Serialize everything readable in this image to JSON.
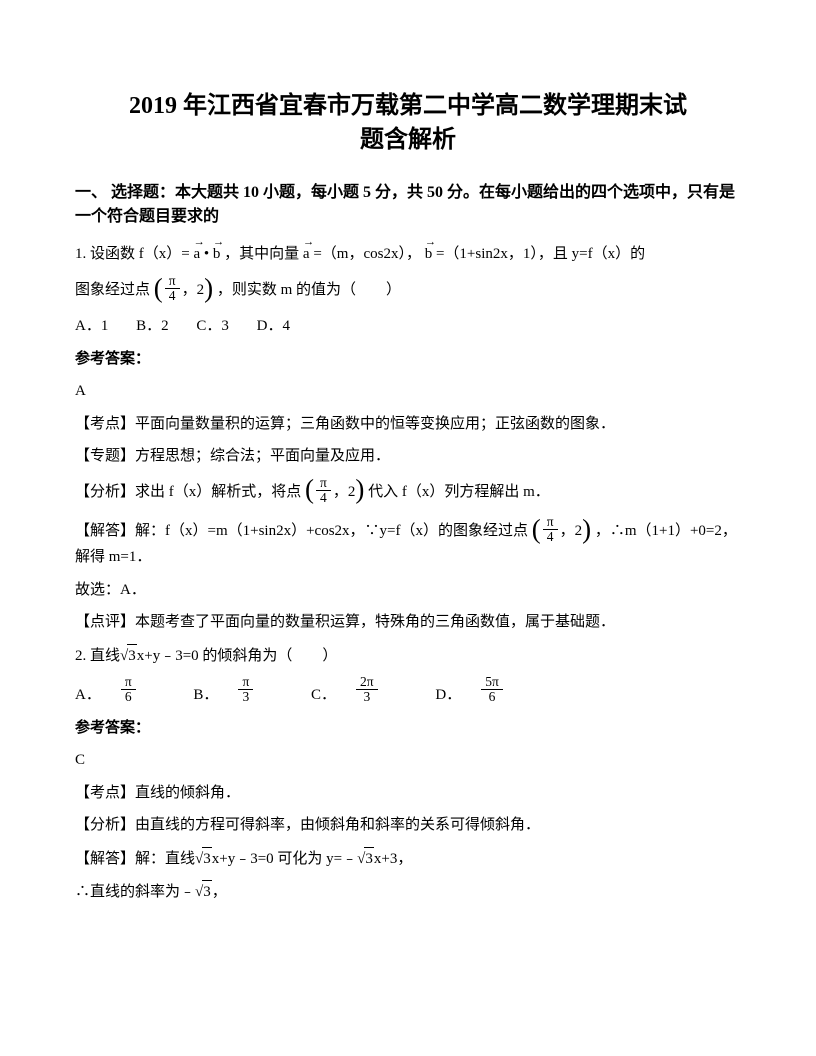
{
  "title_l1": "2019 年江西省宜春市万载第二中学高二数学理期末试",
  "title_l2": "题含解析",
  "section1": "一、 选择题：本大题共 10 小题，每小题 5 分，共 50 分。在每小题给出的四个选项中，只有是一个符合题目要求的",
  "q1": {
    "p1a": "1. 设函数 f（x）= ",
    "vec_a": "a",
    "vec_b": "b",
    "p1b": "，其中向量 ",
    "p1c": "=（m，cos2x），",
    "p1d": "=（1+sin2x，1），且 y=f（x）的",
    "p2a": "图象经过点 ",
    "frac_pi_4": {
      "num": "π",
      "den": "4"
    },
    "p2_pair_tail": "，2",
    "p2b": " ，则实数 m 的值为（　　）",
    "opts": {
      "A": "A．1",
      "B": "B．2",
      "C": "C．3",
      "D": "D．4"
    },
    "ans_label": "参考答案：",
    "ans": "A",
    "kao": "【考点】平面向量数量积的运算；三角函数中的恒等变换应用；正弦函数的图象．",
    "zhuanti": "【专题】方程思想；综合法；平面向量及应用．",
    "fenxi_a": "【分析】求出 f（x）解析式，将点 ",
    "fenxi_b": " 代入 f（x）列方程解出 m．",
    "jieda_a": "【解答】解：f（x）=m（1+sin2x）+cos2x，∵y=f（x）的图象经过点 ",
    "jieda_b": " ，∴m（1+1）+0=2，解得 m=1．",
    "guxuan": "故选：A．",
    "dianping": "【点评】本题考查了平面向量的数量积运算，特殊角的三角函数值，属于基础题．"
  },
  "q2": {
    "stem_a": "2. 直线",
    "sqrt3": "3",
    "stem_b": "x+y﹣3=0 的倾斜角为（　　）",
    "opts": {
      "A": {
        "lbl": "A．",
        "num": "π",
        "den": "6"
      },
      "B": {
        "lbl": "B．",
        "num": "π",
        "den": "3"
      },
      "C": {
        "lbl": "C．",
        "num": "2π",
        "den": "3"
      },
      "D": {
        "lbl": "D．",
        "num": "5π",
        "den": "6"
      }
    },
    "ans_label": "参考答案：",
    "ans": "C",
    "kao": "【考点】直线的倾斜角．",
    "fenxi": "【分析】由直线的方程可得斜率，由倾斜角和斜率的关系可得倾斜角．",
    "jieda_a": "【解答】解：直线",
    "jieda_b": "x+y﹣3=0 可化为 y=﹣",
    "jieda_c": "x+3，",
    "slope_a": "∴直线的斜率为﹣",
    "slope_b": "，"
  }
}
